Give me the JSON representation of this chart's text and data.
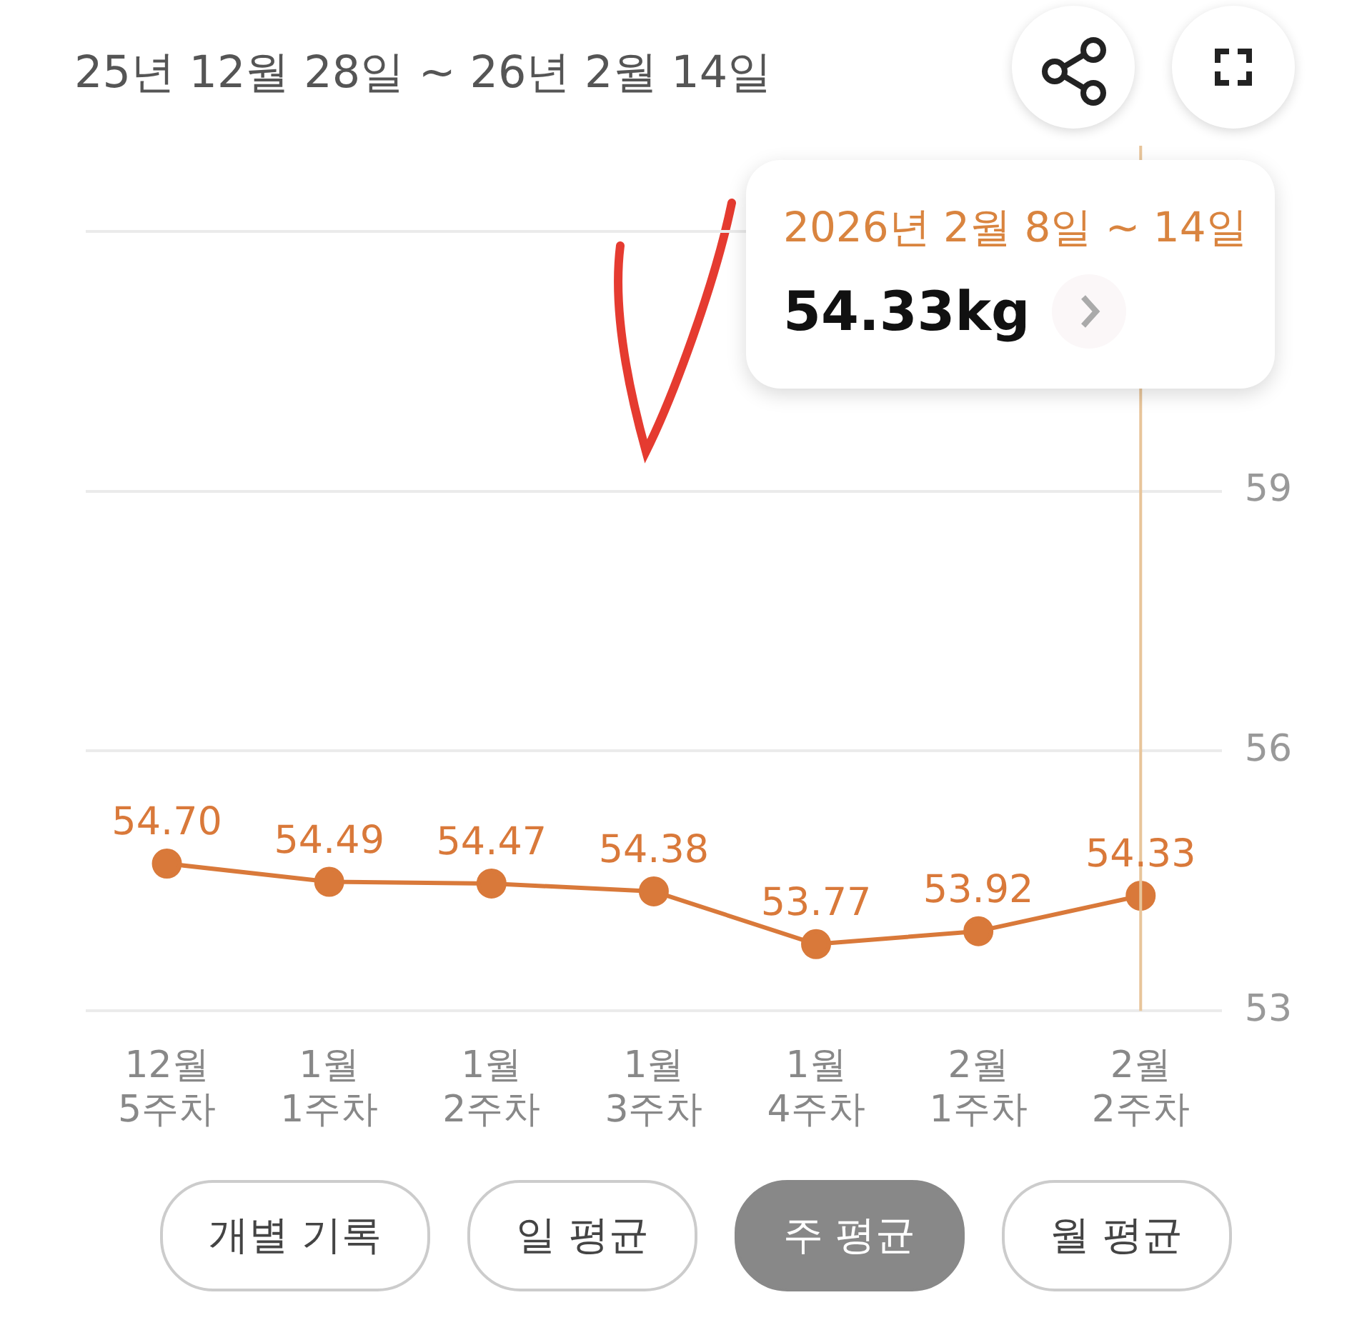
{
  "chart_data": {
    "type": "line",
    "title": "25년 12월 28일 ~ 26년 2월 14일",
    "categories": [
      "12월 5주차",
      "1월 1주차",
      "1월 2주차",
      "1월 3주차",
      "1월 4주차",
      "2월 1주차",
      "2월 2주차"
    ],
    "series": [
      {
        "color": "#d9793a",
        "values": [
          54.7,
          54.49,
          54.47,
          54.38,
          53.77,
          53.92,
          54.33
        ],
        "value_labels": [
          "54.70",
          "54.49",
          "54.47",
          "54.38",
          "53.77",
          "53.92",
          "54.33"
        ]
      }
    ],
    "ylim": [
      53,
      62
    ],
    "yticks": [
      53,
      56,
      59,
      {
        "value": 62,
        "label": null
      }
    ],
    "grid": "y",
    "marker": "circle",
    "line_style": "solid",
    "legend": false,
    "ref_lines": [
      {
        "axis": "x",
        "value": "2월 2주차",
        "color": "#e8c59a"
      }
    ],
    "annotations": [
      "2026년 2월 8일 ~ 14일",
      "54.33kg",
      "개별 기록",
      "일 평균",
      "주 평균",
      "월 평균"
    ]
  }
}
